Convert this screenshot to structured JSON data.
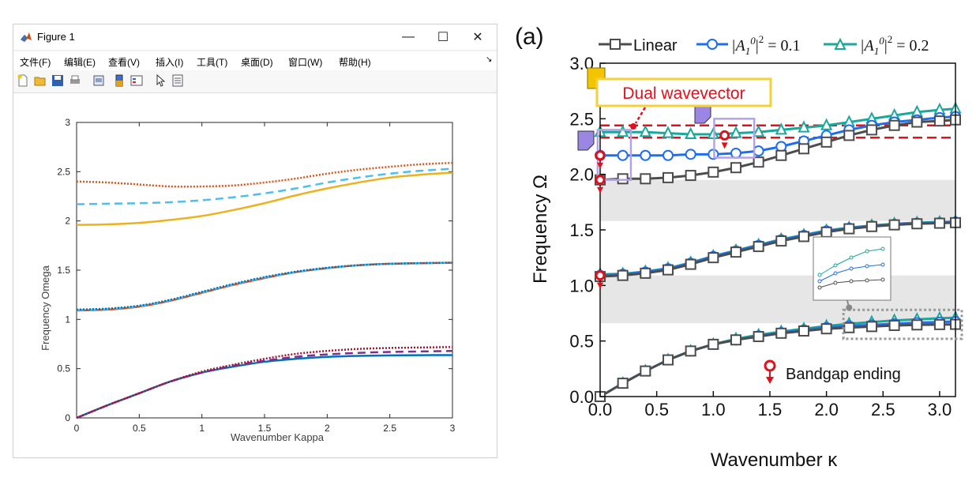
{
  "window": {
    "title": "Figure 1",
    "controls": {
      "minimize": "—",
      "maximize": "☐",
      "close": "✕"
    },
    "menu": [
      "文件(F)",
      "编辑(E)",
      "查看(V)",
      "插入(I)",
      "工具(T)",
      "桌面(D)",
      "窗口(W)",
      "帮助(H)"
    ],
    "menu_arrow": "↘",
    "toolbar_icons": [
      "new-figure-icon",
      "open-file-icon",
      "save-icon",
      "print-icon",
      "link-plot-icon",
      "colorbar-icon",
      "legend-icon",
      "pointer-icon",
      "property-inspector-icon"
    ]
  },
  "chart_data": [
    {
      "type": "line",
      "title": "",
      "xlabel": "Wavenumber Kappa",
      "ylabel": "Frequency Omega",
      "xlim": [
        0,
        3
      ],
      "ylim": [
        0,
        3
      ],
      "xticks": [
        "0",
        "0.5",
        "1",
        "1.5",
        "2",
        "2.5",
        "3"
      ],
      "yticks": [
        "0",
        "0.5",
        "1",
        "1.5",
        "2",
        "2.5",
        "3"
      ],
      "grid": false,
      "x": [
        0,
        0.25,
        0.5,
        0.75,
        1.0,
        1.25,
        1.5,
        1.75,
        2.0,
        2.25,
        2.5,
        2.75,
        3.0
      ],
      "series": [
        {
          "style": "solid",
          "color": "#0072BD",
          "values": [
            0,
            0.13,
            0.25,
            0.37,
            0.46,
            0.52,
            0.57,
            0.6,
            0.62,
            0.63,
            0.635,
            0.637,
            0.638
          ]
        },
        {
          "style": "dashed",
          "color": "#7E2F8E",
          "values": [
            0,
            0.13,
            0.25,
            0.37,
            0.46,
            0.53,
            0.58,
            0.62,
            0.645,
            0.66,
            0.67,
            0.675,
            0.68
          ]
        },
        {
          "style": "dotted",
          "color": "#A2142F",
          "values": [
            0,
            0.13,
            0.25,
            0.37,
            0.47,
            0.54,
            0.6,
            0.65,
            0.68,
            0.7,
            0.71,
            0.715,
            0.72
          ]
        },
        {
          "style": "solid",
          "color": "#D95319",
          "values": [
            1.09,
            1.1,
            1.13,
            1.19,
            1.27,
            1.35,
            1.42,
            1.48,
            1.52,
            1.55,
            1.565,
            1.57,
            1.575
          ]
        },
        {
          "style": "dashed",
          "color": "#4DBEEE",
          "values": [
            1.095,
            1.105,
            1.135,
            1.195,
            1.275,
            1.355,
            1.425,
            1.48,
            1.52,
            1.55,
            1.565,
            1.57,
            1.575
          ]
        },
        {
          "style": "dotted",
          "color": "#0072BD",
          "values": [
            1.1,
            1.11,
            1.14,
            1.2,
            1.28,
            1.36,
            1.43,
            1.485,
            1.525,
            1.55,
            1.565,
            1.572,
            1.577
          ]
        },
        {
          "style": "solid",
          "color": "#EDB120",
          "values": [
            1.96,
            1.965,
            1.98,
            2.01,
            2.05,
            2.11,
            2.18,
            2.26,
            2.33,
            2.39,
            2.44,
            2.47,
            2.49
          ]
        },
        {
          "style": "dashed",
          "color": "#4DBEEE",
          "values": [
            2.17,
            2.175,
            2.18,
            2.19,
            2.21,
            2.24,
            2.28,
            2.33,
            2.39,
            2.44,
            2.48,
            2.51,
            2.53
          ]
        },
        {
          "style": "dotted",
          "color": "#D95319",
          "values": [
            2.4,
            2.39,
            2.37,
            2.35,
            2.35,
            2.36,
            2.39,
            2.43,
            2.48,
            2.52,
            2.55,
            2.575,
            2.59
          ]
        }
      ]
    },
    {
      "type": "line",
      "panel_label": "(a)",
      "title": "",
      "xlabel": "Wavenumber κ",
      "ylabel": "Frequency Ω",
      "xlim": [
        0,
        3.14
      ],
      "ylim": [
        0,
        3
      ],
      "xticks": [
        "0.0",
        "0.5",
        "1.0",
        "1.5",
        "2.0",
        "2.5",
        "3.0"
      ],
      "yticks": [
        "0.0",
        "0.5",
        "1.0",
        "1.5",
        "2.0",
        "2.5",
        "3.0"
      ],
      "legend": {
        "position": "top",
        "entries": [
          "Linear",
          "|A",
          "1",
          "0",
          "|",
          "2",
          " = 0.1",
          " = 0.2"
        ]
      },
      "annotations": {
        "dual": "Dual wavevector",
        "bandgap": "Bandgap ending"
      },
      "x": [
        0,
        0.2,
        0.4,
        0.6,
        0.8,
        1.0,
        1.2,
        1.4,
        1.6,
        1.8,
        2.0,
        2.2,
        2.4,
        2.6,
        2.8,
        3.0,
        3.14
      ],
      "series": [
        {
          "name": "Linear",
          "color": "#4d4d4d",
          "marker": "square",
          "band1": [
            0,
            0.12,
            0.23,
            0.33,
            0.41,
            0.47,
            0.51,
            0.54,
            0.57,
            0.59,
            0.61,
            0.62,
            0.63,
            0.64,
            0.645,
            0.648,
            0.65
          ],
          "band2": [
            1.08,
            1.09,
            1.11,
            1.14,
            1.19,
            1.25,
            1.3,
            1.35,
            1.4,
            1.44,
            1.48,
            1.51,
            1.53,
            1.545,
            1.555,
            1.56,
            1.565
          ],
          "band3": [
            1.95,
            1.96,
            1.96,
            1.97,
            1.99,
            2.02,
            2.06,
            2.11,
            2.17,
            2.23,
            2.29,
            2.35,
            2.4,
            2.44,
            2.47,
            2.48,
            2.49
          ]
        },
        {
          "name": "= 0.1",
          "color": "#1f6ef0",
          "marker": "circle",
          "band1": [
            0,
            0.12,
            0.23,
            0.33,
            0.41,
            0.47,
            0.51,
            0.545,
            0.575,
            0.6,
            0.62,
            0.635,
            0.645,
            0.655,
            0.665,
            0.67,
            0.675
          ],
          "band2": [
            1.09,
            1.1,
            1.12,
            1.15,
            1.2,
            1.26,
            1.31,
            1.36,
            1.41,
            1.45,
            1.49,
            1.515,
            1.535,
            1.55,
            1.56,
            1.565,
            1.57
          ],
          "band3": [
            2.17,
            2.17,
            2.17,
            2.17,
            2.18,
            2.18,
            2.19,
            2.21,
            2.25,
            2.3,
            2.35,
            2.4,
            2.44,
            2.47,
            2.49,
            2.51,
            2.52
          ]
        },
        {
          "name": "= 0.2",
          "color": "#1aa89a",
          "marker": "triangle",
          "band1": [
            0,
            0.12,
            0.23,
            0.33,
            0.41,
            0.47,
            0.52,
            0.555,
            0.585,
            0.61,
            0.635,
            0.655,
            0.67,
            0.685,
            0.695,
            0.705,
            0.71
          ],
          "band2": [
            1.1,
            1.105,
            1.125,
            1.155,
            1.205,
            1.265,
            1.315,
            1.365,
            1.415,
            1.455,
            1.495,
            1.52,
            1.54,
            1.555,
            1.565,
            1.57,
            1.575
          ],
          "band3": [
            2.38,
            2.38,
            2.38,
            2.37,
            2.36,
            2.36,
            2.37,
            2.38,
            2.4,
            2.42,
            2.44,
            2.47,
            2.5,
            2.53,
            2.56,
            2.58,
            2.59
          ]
        }
      ],
      "bandgaps": [
        [
          0.66,
          1.09
        ],
        [
          1.58,
          1.95
        ]
      ],
      "dashed_reference": [
        2.33,
        2.44
      ]
    }
  ]
}
